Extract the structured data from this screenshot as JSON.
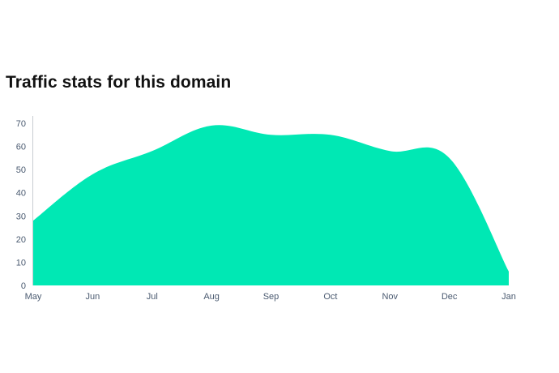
{
  "title": "Traffic stats for this domain",
  "colors": {
    "area": "#00e8b4",
    "axis": "#c8ccd2",
    "tick_text": "#4a5a70"
  },
  "chart_data": {
    "type": "area",
    "title": "Traffic stats for this domain",
    "categories": [
      "May",
      "Jun",
      "Jul",
      "Aug",
      "Sep",
      "Oct",
      "Nov",
      "Dec",
      "Jan"
    ],
    "series": [
      {
        "values": [
          28,
          48,
          58,
          69,
          65,
          65,
          58,
          55,
          6
        ]
      }
    ],
    "yticks": [
      0,
      10,
      20,
      30,
      40,
      50,
      60,
      70
    ],
    "ylim": [
      0,
      73
    ],
    "grid": false,
    "legend": "none",
    "curve": "smooth"
  }
}
